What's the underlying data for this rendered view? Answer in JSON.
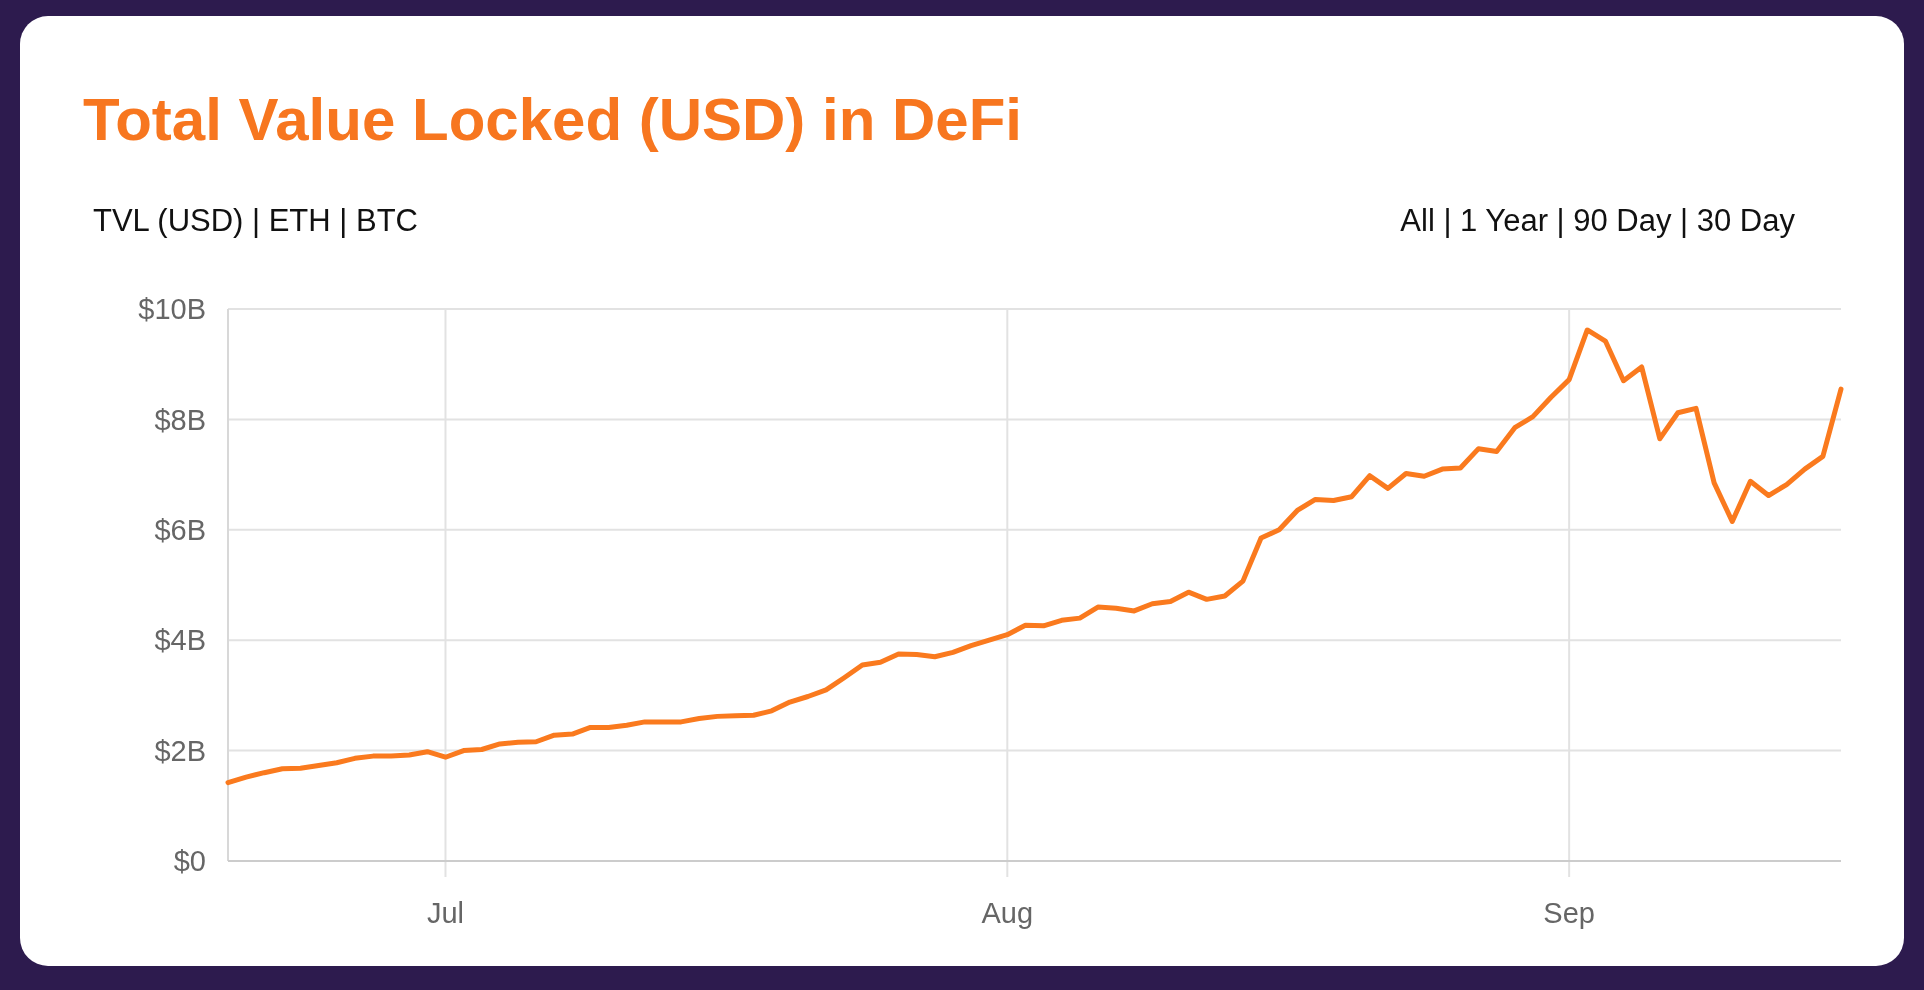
{
  "chart_data": {
    "type": "line",
    "title": "Total Value Locked (USD) in DeFi",
    "annotations": [
      "TVL (USD) | ETH | BTC",
      "All | 1 Year | 90 Day | 30 Day"
    ],
    "x": [
      "--06-19",
      "--06-20",
      "--06-21",
      "--06-22",
      "--06-23",
      "--06-24",
      "--06-25",
      "--06-26",
      "--06-27",
      "--06-28",
      "--06-29",
      "--06-30",
      "--07-01",
      "--07-02",
      "--07-03",
      "--07-04",
      "--07-05",
      "--07-06",
      "--07-07",
      "--07-08",
      "--07-09",
      "--07-10",
      "--07-11",
      "--07-12",
      "--07-13",
      "--07-14",
      "--07-15",
      "--07-16",
      "--07-17",
      "--07-18",
      "--07-19",
      "--07-20",
      "--07-21",
      "--07-22",
      "--07-23",
      "--07-24",
      "--07-25",
      "--07-26",
      "--07-27",
      "--07-28",
      "--07-29",
      "--07-30",
      "--07-31",
      "--08-01",
      "--08-02",
      "--08-03",
      "--08-04",
      "--08-05",
      "--08-06",
      "--08-07",
      "--08-08",
      "--08-09",
      "--08-10",
      "--08-11",
      "--08-12",
      "--08-13",
      "--08-14",
      "--08-15",
      "--08-16",
      "--08-17",
      "--08-18",
      "--08-19",
      "--08-20",
      "--08-21",
      "--08-22",
      "--08-23",
      "--08-24",
      "--08-25",
      "--08-26",
      "--08-27",
      "--08-28",
      "--08-29",
      "--08-30",
      "--08-31",
      "--09-01",
      "--09-02",
      "--09-03",
      "--09-04",
      "--09-05",
      "--09-06",
      "--09-07",
      "--09-08",
      "--09-09",
      "--09-10",
      "--09-11",
      "--09-12",
      "--09-13",
      "--09-14",
      "--09-15",
      "--09-16"
    ],
    "series": [
      {
        "color": "#fa7a1e",
        "values": [
          1.42,
          1.52,
          1.6,
          1.67,
          1.68,
          1.73,
          1.78,
          1.86,
          1.9,
          1.9,
          1.92,
          1.98,
          1.88,
          2.0,
          2.02,
          2.12,
          2.15,
          2.16,
          2.28,
          2.3,
          2.42,
          2.42,
          2.46,
          2.52,
          2.52,
          2.52,
          2.58,
          2.62,
          2.63,
          2.64,
          2.72,
          2.88,
          2.98,
          3.1,
          3.32,
          3.55,
          3.6,
          3.75,
          3.74,
          3.7,
          3.78,
          3.9,
          4.0,
          4.1,
          4.27,
          4.26,
          4.36,
          4.4,
          4.6,
          4.58,
          4.53,
          4.66,
          4.7,
          4.87,
          4.74,
          4.8,
          5.07,
          5.85,
          6.0,
          6.35,
          6.55,
          6.53,
          6.6,
          6.98,
          6.75,
          7.02,
          6.97,
          7.1,
          7.12,
          7.47,
          7.42,
          7.85,
          8.05,
          8.4,
          8.72,
          9.62,
          9.42,
          8.7,
          8.95,
          7.65,
          8.12,
          8.2,
          6.85,
          6.15,
          6.88,
          6.62,
          6.82,
          7.1,
          7.33,
          8.55
        ]
      }
    ],
    "xlim": [
      "--06-19",
      "--09-16"
    ],
    "xticks": [
      {
        "value": "--07-01",
        "label": "Jul"
      },
      {
        "value": "--08-01",
        "label": "Aug"
      },
      {
        "value": "--09-01",
        "label": "Sep"
      }
    ],
    "ylim": [
      0,
      10
    ],
    "yticks": [
      {
        "value": 0,
        "label": "$0"
      },
      {
        "value": 2,
        "label": "$2B"
      },
      {
        "value": 4,
        "label": "$4B"
      },
      {
        "value": 6,
        "label": "$6B"
      },
      {
        "value": 8,
        "label": "$8B"
      },
      {
        "value": 10,
        "label": "$10B"
      }
    ],
    "grid": true,
    "marker": "none",
    "line_style": "solid"
  }
}
